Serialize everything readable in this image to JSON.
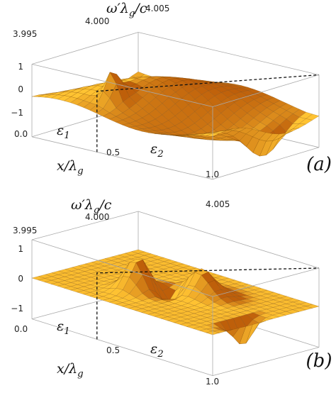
{
  "panels": [
    {
      "label": "(a)",
      "freq_title": {
        "base": "ω′λ",
        "sub": "g",
        "tail": "/c"
      },
      "freq_ticks": [
        "3.995",
        "4.000",
        "4.005"
      ],
      "z_ticks": [
        "1",
        "0",
        "−1"
      ],
      "x_ticks": [
        "0.0",
        "0.5",
        "1.0"
      ],
      "x_title": {
        "base": "x/λ",
        "sub": "g"
      },
      "regions": [
        {
          "base": "ε",
          "sub": "1"
        },
        {
          "base": "ε",
          "sub": "2"
        }
      ]
    },
    {
      "label": "(b)",
      "freq_title": {
        "base": "ω′λ",
        "sub": "g",
        "tail": "/c"
      },
      "freq_ticks": [
        "3.995",
        "4.000",
        "4.005"
      ],
      "z_ticks": [
        "1",
        "0",
        "−1"
      ],
      "x_ticks": [
        "0.0",
        "0.5",
        "1.0"
      ],
      "x_title": {
        "base": "x/λ",
        "sub": "g"
      },
      "regions": [
        {
          "base": "ε",
          "sub": "1"
        },
        {
          "base": "ε",
          "sub": "2"
        }
      ]
    }
  ]
}
